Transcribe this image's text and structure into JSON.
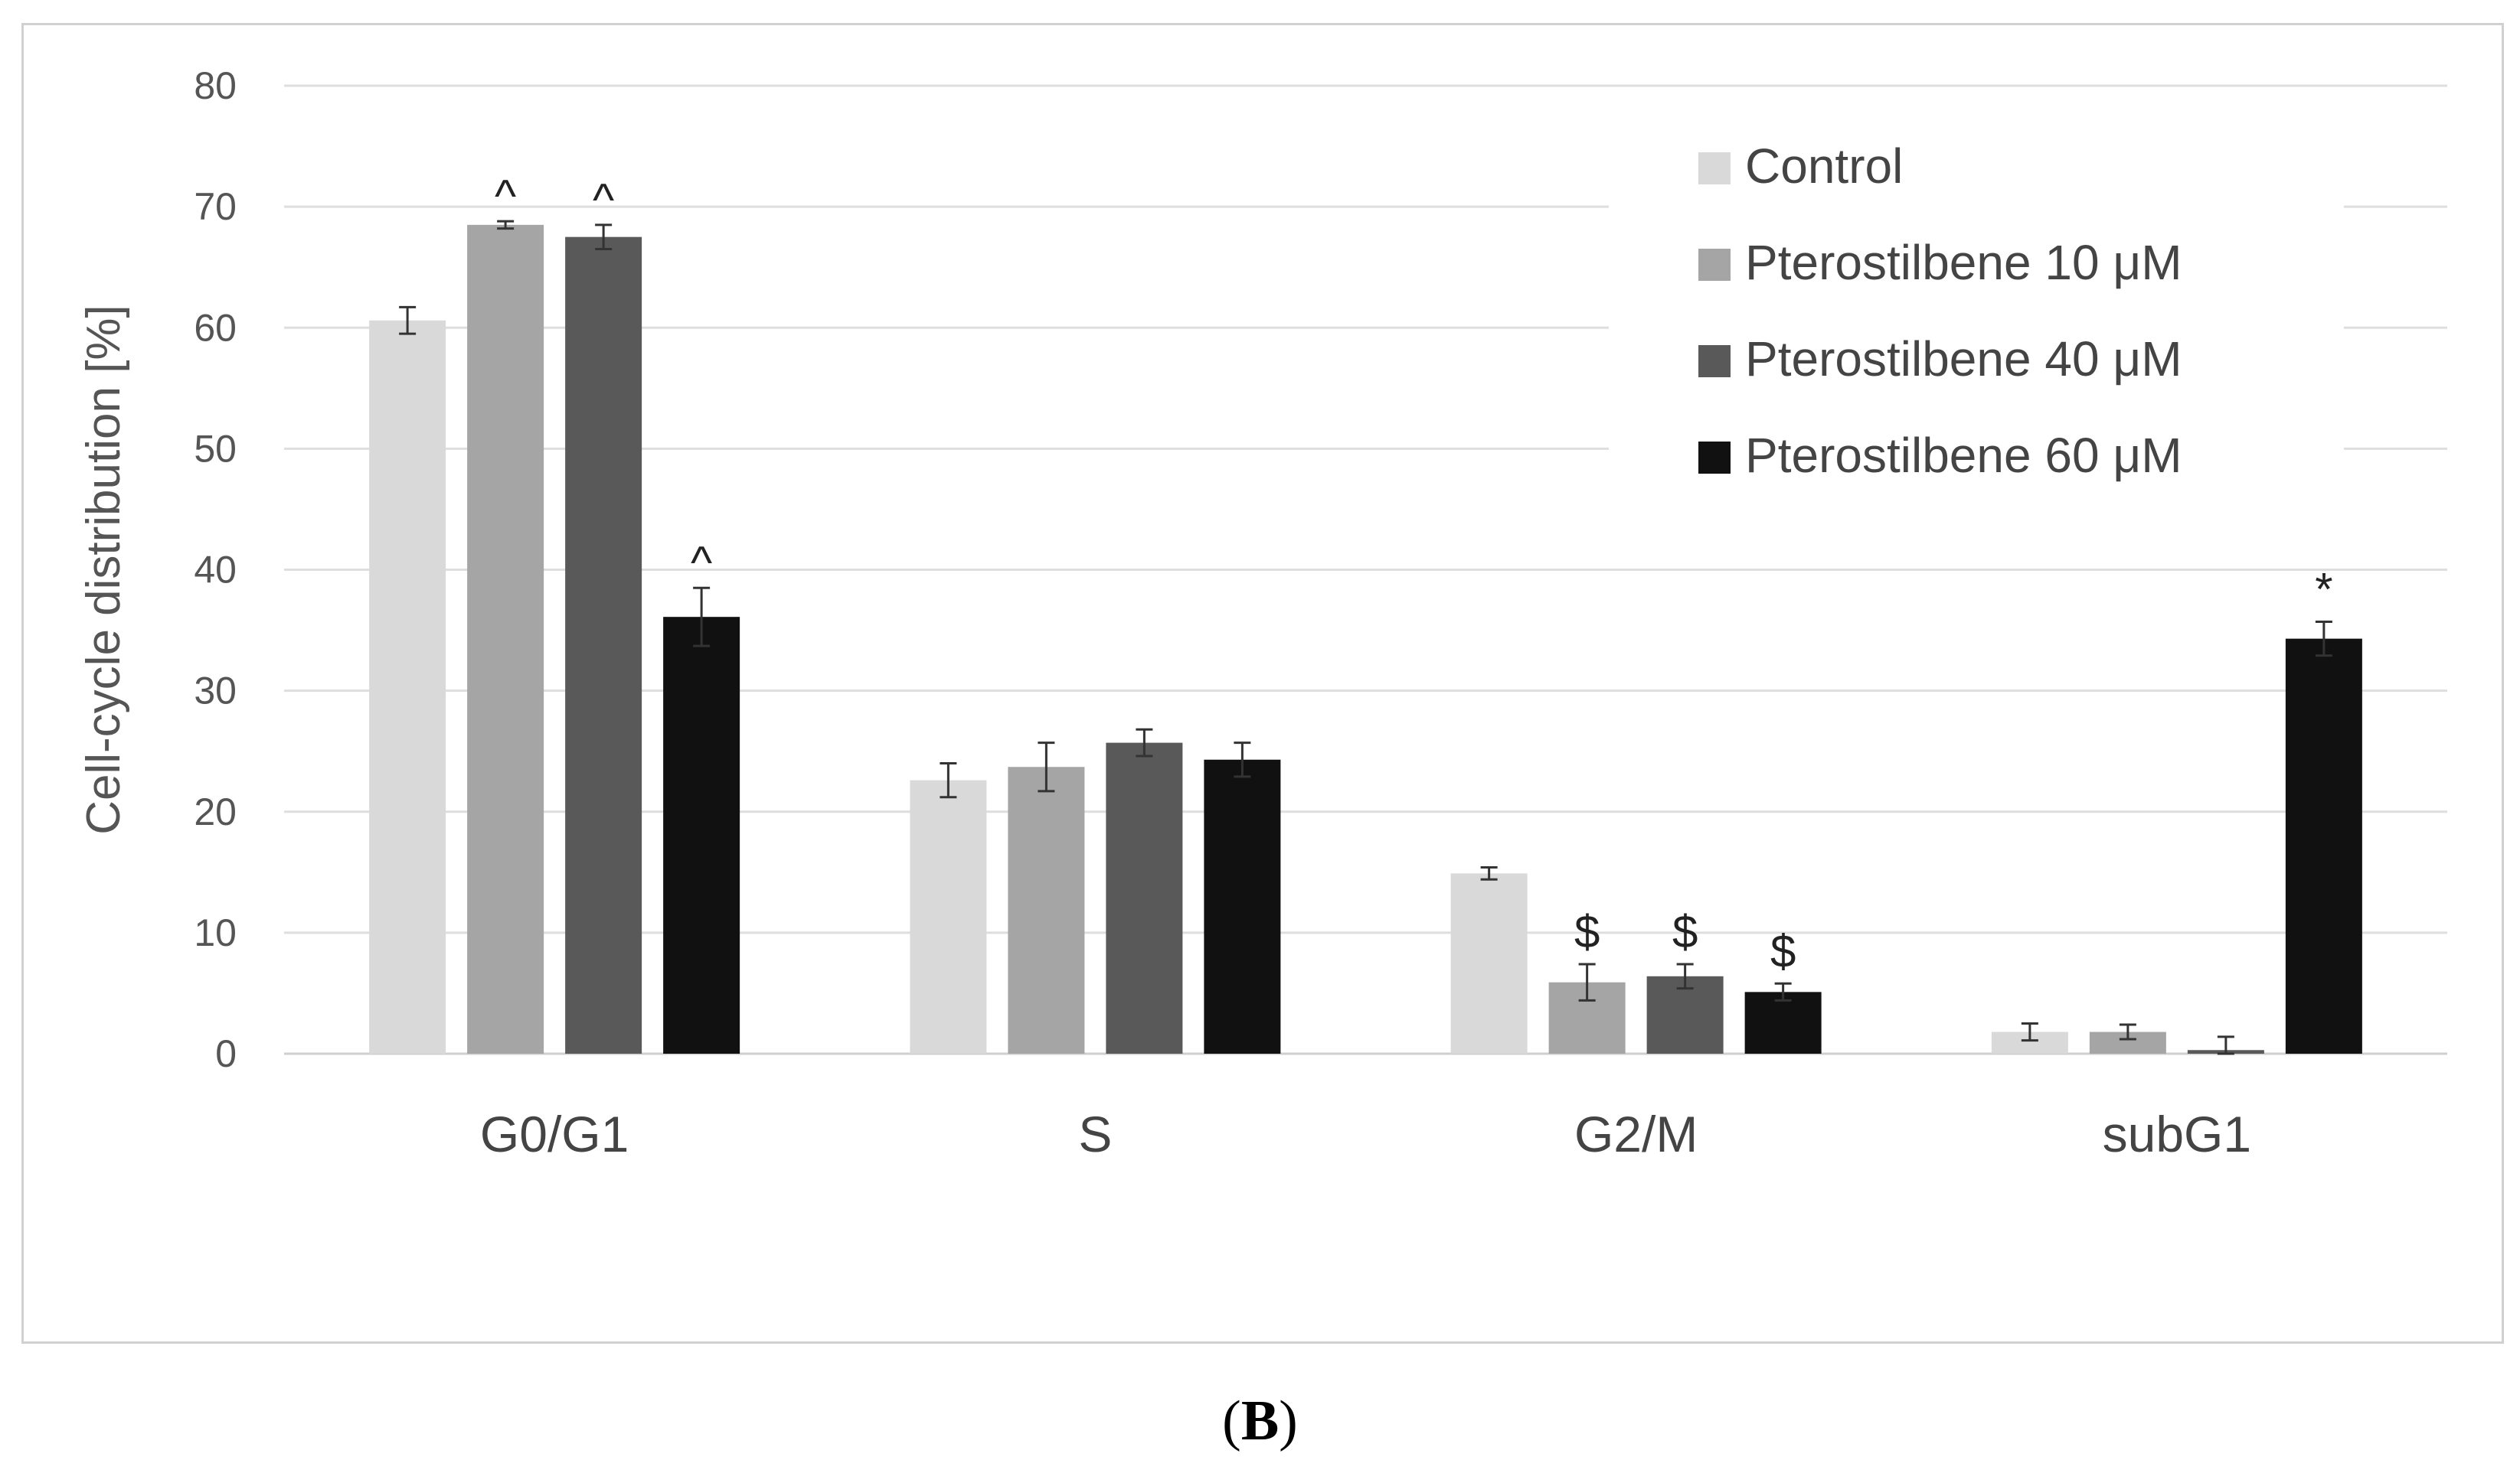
{
  "panel": {
    "open": "(",
    "letter": "B",
    "close": ")"
  },
  "chart_data": {
    "type": "bar",
    "title": "",
    "xlabel": "",
    "ylabel": "Cell-cycle distribution [%]",
    "ylim": [
      0,
      80
    ],
    "yticks": [
      0,
      10,
      20,
      30,
      40,
      50,
      60,
      70,
      80
    ],
    "grid": true,
    "legend_position": "top-right",
    "categories": [
      "G0/G1",
      "S",
      "G2/M",
      "subG1"
    ],
    "series": [
      {
        "name": "Control",
        "color": "#d9d9d9",
        "values": [
          60.6,
          22.6,
          14.9,
          1.8
        ],
        "errors": [
          1.1,
          1.4,
          0.5,
          0.7
        ],
        "annotations": [
          "",
          "",
          "",
          ""
        ]
      },
      {
        "name": "Pterostilbene 10 μM",
        "color": "#a5a5a5",
        "values": [
          68.5,
          23.7,
          5.9,
          1.8
        ],
        "errors": [
          0.3,
          2.0,
          1.5,
          0.6
        ],
        "annotations": [
          "^",
          "",
          "$",
          ""
        ]
      },
      {
        "name": "Pterostilbene 40 μM",
        "color": "#595959",
        "values": [
          67.5,
          25.7,
          6.4,
          0.3
        ],
        "errors": [
          1.0,
          1.1,
          1.0,
          1.1
        ],
        "annotations": [
          "^",
          "",
          "$",
          ""
        ]
      },
      {
        "name": "Pterostilbene 60 μM",
        "color": "#111111",
        "values": [
          36.1,
          24.3,
          5.1,
          34.3
        ],
        "errors": [
          2.4,
          1.4,
          0.7,
          1.4
        ],
        "annotations": [
          "^",
          "",
          "$",
          "*"
        ]
      }
    ]
  }
}
